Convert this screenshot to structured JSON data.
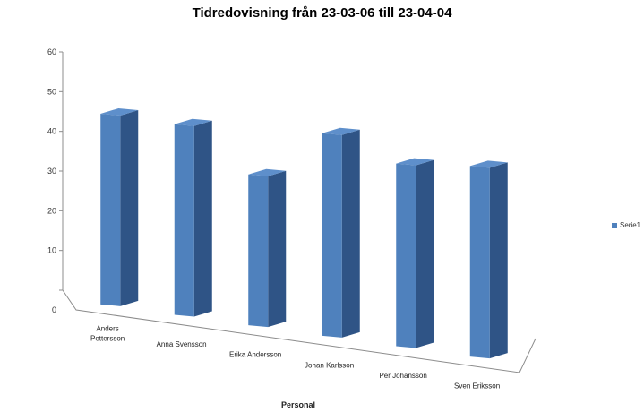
{
  "colors": {
    "bar_front": "#4f81bd",
    "bar_side": "#2f5486",
    "bar_top": "#5e8fcb",
    "axis": "#8c8c8c"
  },
  "chart_data": {
    "type": "bar",
    "title": "Tidredovisning från 23-03-06 till 23-04-04",
    "xlabel": "Personal",
    "ylabel": "",
    "ylim": [
      0,
      60
    ],
    "yticks": [
      "0",
      "10",
      "20",
      "30",
      "40",
      "50",
      "60"
    ],
    "categories": [
      [
        "Anders",
        "Pettersson"
      ],
      [
        "Anna Svensson"
      ],
      [
        "Erika Andersson"
      ],
      [
        "Johan Karlsson"
      ],
      [
        "Per Johansson"
      ],
      [
        "Sven Eriksson"
      ]
    ],
    "series": [
      {
        "name": "Serie1",
        "values": [
          48,
          48,
          38,
          51,
          46,
          48
        ]
      }
    ],
    "legend": {
      "position": "right",
      "labels": [
        "Serie1"
      ]
    },
    "grid": false,
    "style": "3d-column"
  }
}
